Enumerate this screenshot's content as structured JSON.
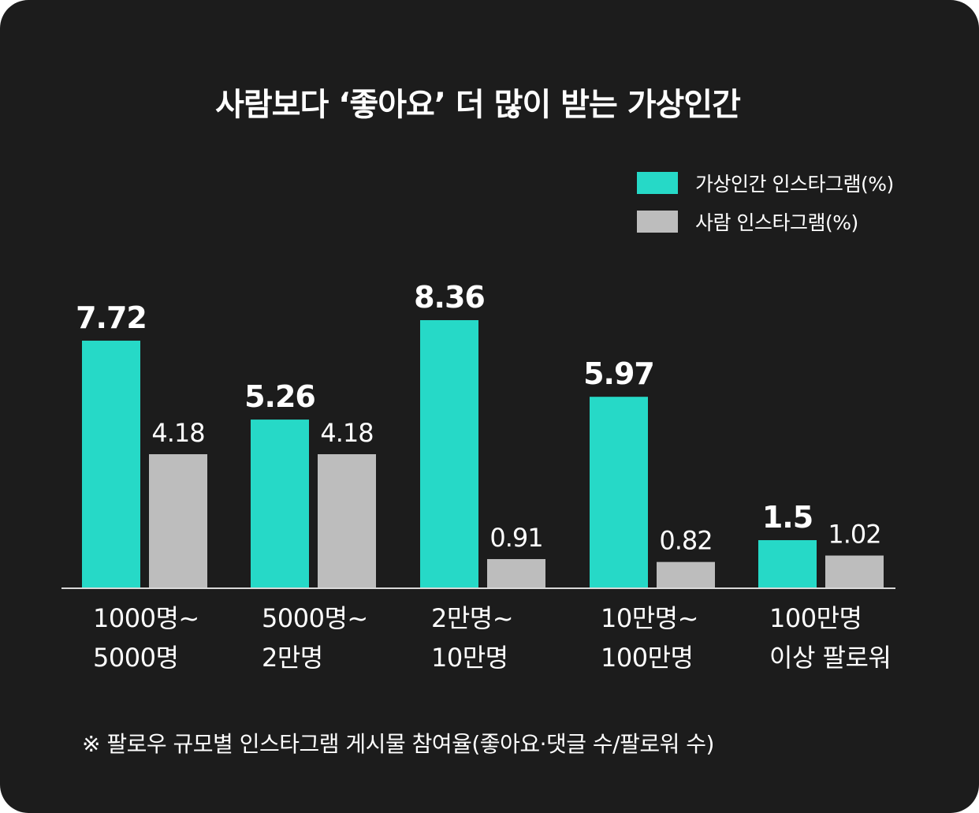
{
  "title": "사람보다 ‘좋아요’ 더 많이 받는 가상인간",
  "legend": [
    {
      "label": "가상인간 인스타그램(%)",
      "color": "#26d9c7"
    },
    {
      "label": "사람 인스타그램(%)",
      "color": "#bdbdbd"
    }
  ],
  "footnote": "※ 팔로우 규모별 인스타그램 게시물 참여율(좋아요·댓글 수/팔로워 수)",
  "colors": {
    "background": "#1c1c1c",
    "virtual": "#26d9c7",
    "human": "#bdbdbd",
    "axis": "#d9d9d9",
    "text": "#ffffff"
  },
  "chart_data": {
    "type": "bar",
    "categories": [
      [
        "1000명~",
        "5000명"
      ],
      [
        "5000명~",
        "2만명"
      ],
      [
        "2만명~",
        "10만명"
      ],
      [
        "10만명~",
        "100만명"
      ],
      [
        "100만명",
        "이상 팔로워"
      ]
    ],
    "series": [
      {
        "name": "가상인간 인스타그램(%)",
        "values": [
          7.72,
          5.26,
          8.36,
          5.97,
          1.5
        ],
        "labels": [
          "7.72",
          "5.26",
          "8.36",
          "5.97",
          "1.5"
        ]
      },
      {
        "name": "사람 인스타그램(%)",
        "values": [
          4.18,
          4.18,
          0.91,
          0.82,
          1.02
        ],
        "labels": [
          "4.18",
          "4.18",
          "0.91",
          "0.82",
          "1.02"
        ]
      }
    ],
    "ylim": [
      0,
      9
    ],
    "grid": false,
    "legend_position": "top-right"
  }
}
